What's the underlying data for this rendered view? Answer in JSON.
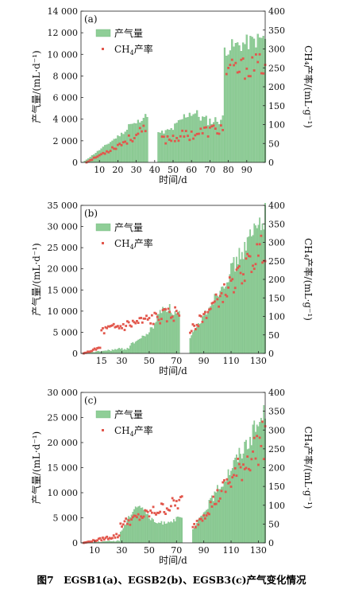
{
  "caption": "图7　EGSB1(a)、EGSB2(b)、EGSB3(c)产气变化情况",
  "legend": {
    "gas": "产气量",
    "ch4_prefix": "CH",
    "ch4_sub": "4",
    "ch4_suffix": "产率"
  },
  "colors": {
    "bar": "#8fce97",
    "bar_edge": "#6fb67a",
    "marker": "#e2574c",
    "axis": "#222222"
  },
  "chart_data": [
    {
      "panel": "(a)",
      "type": "bar+scatter",
      "xlabel": "时间/d",
      "ylabel_left": "产气量/(mL·d⁻¹)",
      "ylabel_right": "CH₄产率/(mL·g⁻¹)",
      "xlim": [
        0,
        100
      ],
      "ylim_left": [
        0,
        14000
      ],
      "ylim_right": [
        0,
        400
      ],
      "xticks": [
        "10",
        "20",
        "30",
        "40",
        "50",
        "60",
        "70",
        "80",
        "90"
      ],
      "yticks_left": [
        "0",
        "2 000",
        "4 000",
        "6 000",
        "8 000",
        "10 000",
        "12 000",
        "14 000"
      ],
      "yticks_right": [
        "0",
        "50",
        "100",
        "150",
        "200",
        "250",
        "300",
        "350",
        "400"
      ],
      "gas_production_segments": [
        {
          "from": 1,
          "to": 36,
          "start": 0,
          "end": 4400,
          "jump_day": 26,
          "jump_value": 3500,
          "noise": 0.06
        },
        {
          "from": 42,
          "to": 77,
          "start": 2600,
          "end": 4000,
          "peak_day": 60,
          "peak_value": 4600,
          "noise": 0.12
        },
        {
          "from": 78,
          "to": 100,
          "start": 10500,
          "end": 11500,
          "noise": 0.07
        }
      ],
      "ch4_yield_segments": [
        {
          "from": 3,
          "to": 35,
          "start": 0,
          "end": 85,
          "noise": 0.18
        },
        {
          "from": 44,
          "to": 77,
          "start": 60,
          "end": 90,
          "noise": 0.2
        },
        {
          "from": 79,
          "to": 100,
          "start": 240,
          "end": 260,
          "noise": 0.12
        }
      ]
    },
    {
      "panel": "(b)",
      "type": "bar+scatter",
      "xlabel": "时间/d",
      "ylabel_left": "产气量/(mL·d⁻¹)",
      "ylabel_right": "CH₄产率/(mL·g⁻¹)",
      "xlim": [
        0,
        135
      ],
      "ylim_left": [
        0,
        35000
      ],
      "ylim_right": [
        0,
        400
      ],
      "xticks": [
        "15",
        "30",
        "50",
        "70",
        "90",
        "110",
        "130"
      ],
      "yticks_left": [
        "0",
        "5 000",
        "10 000",
        "15 000",
        "20 000",
        "25 000",
        "30 000",
        "35 000"
      ],
      "yticks_right": [
        "0",
        "50",
        "100",
        "150",
        "200",
        "250",
        "300",
        "350",
        "400"
      ],
      "gas_production_segments": [
        {
          "from": 1,
          "to": 35,
          "start": 0,
          "end": 1200,
          "noise": 0.35
        },
        {
          "from": 36,
          "to": 72,
          "start": 2000,
          "end": 9000,
          "peak_day": 62,
          "peak_value": 11000,
          "noise": 0.12
        },
        {
          "from": 80,
          "to": 135,
          "start": 3500,
          "end": 33000,
          "noise": 0.1
        }
      ],
      "ch4_yield_segments": [
        {
          "from": 2,
          "to": 14,
          "start": 0,
          "end": 15,
          "noise": 0.3
        },
        {
          "from": 15,
          "to": 72,
          "start": 60,
          "end": 110,
          "noise": 0.2
        },
        {
          "from": 80,
          "to": 135,
          "start": 60,
          "end": 290,
          "noise": 0.15
        }
      ]
    },
    {
      "panel": "(c)",
      "type": "bar+scatter",
      "xlabel": "时间/d",
      "ylabel_left": "产气量/(mL·d⁻¹)",
      "ylabel_right": "CH₄产率/(mL·g⁻¹)",
      "xlim": [
        0,
        135
      ],
      "ylim_left": [
        0,
        30000
      ],
      "ylim_right": [
        0,
        400
      ],
      "xticks": [
        "10",
        "30",
        "50",
        "70",
        "90",
        "110",
        "130"
      ],
      "yticks_left": [
        "0",
        "5 000",
        "10 000",
        "15 000",
        "20 000",
        "25 000",
        "30 000"
      ],
      "yticks_right": [
        "0",
        "50",
        "100",
        "150",
        "200",
        "250",
        "300",
        "350",
        "400"
      ],
      "gas_production_segments": [
        {
          "from": 1,
          "to": 28,
          "start": 0,
          "end": 400,
          "noise": 0.4
        },
        {
          "from": 29,
          "to": 74,
          "start": 1500,
          "end": 5000,
          "peak_day": 42,
          "peak_value": 7500,
          "noise": 0.1
        },
        {
          "from": 82,
          "to": 135,
          "start": 2500,
          "end": 26000,
          "noise": 0.1
        }
      ],
      "ch4_yield_segments": [
        {
          "from": 2,
          "to": 28,
          "start": 0,
          "end": 20,
          "noise": 0.35
        },
        {
          "from": 29,
          "to": 74,
          "start": 50,
          "end": 110,
          "noise": 0.2
        },
        {
          "from": 82,
          "to": 135,
          "start": 40,
          "end": 280,
          "noise": 0.2
        }
      ]
    }
  ]
}
